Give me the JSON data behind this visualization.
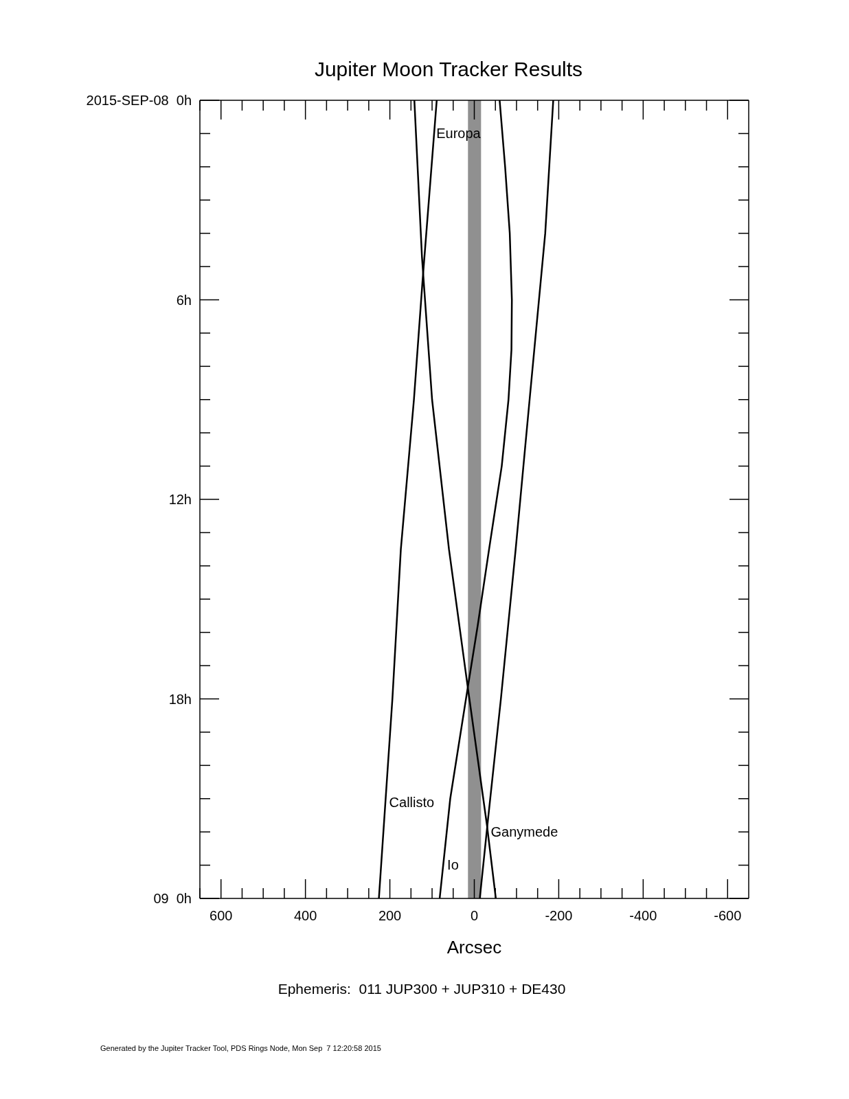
{
  "chart_data": {
    "type": "line",
    "title": "Jupiter Moon Tracker Results",
    "xlabel": "Arcsec",
    "xlim": [
      650,
      -650
    ],
    "xticks": [
      {
        "value": 650,
        "label": null
      },
      {
        "value": 600,
        "label": "600"
      },
      {
        "value": 550,
        "label": null
      },
      {
        "value": 500,
        "label": null
      },
      {
        "value": 450,
        "label": null
      },
      {
        "value": 400,
        "label": "400"
      },
      {
        "value": 350,
        "label": null
      },
      {
        "value": 300,
        "label": null
      },
      {
        "value": 250,
        "label": null
      },
      {
        "value": 200,
        "label": "200"
      },
      {
        "value": 150,
        "label": null
      },
      {
        "value": 100,
        "label": null
      },
      {
        "value": 50,
        "label": null
      },
      0,
      {
        "value": -50,
        "label": null
      },
      {
        "value": -100,
        "label": null
      },
      {
        "value": -150,
        "label": null
      },
      {
        "value": -200,
        "label": "-200"
      },
      {
        "value": -250,
        "label": null
      },
      {
        "value": -300,
        "label": null
      },
      {
        "value": -350,
        "label": null
      },
      {
        "value": -400,
        "label": "-400"
      },
      {
        "value": -450,
        "label": null
      },
      {
        "value": -500,
        "label": null
      },
      {
        "value": -550,
        "label": null
      },
      {
        "value": -600,
        "label": "-600"
      }
    ],
    "ylim": [
      24,
      0
    ],
    "yticks": [
      {
        "value": 0,
        "label": "2015-SEP-08  0h"
      },
      {
        "value": 1,
        "label": null
      },
      {
        "value": 2,
        "label": null
      },
      {
        "value": 3,
        "label": null
      },
      {
        "value": 4,
        "label": null
      },
      {
        "value": 5,
        "label": null
      },
      {
        "value": 6,
        "label": "6h"
      },
      {
        "value": 7,
        "label": null
      },
      {
        "value": 8,
        "label": null
      },
      {
        "value": 9,
        "label": null
      },
      {
        "value": 10,
        "label": null
      },
      {
        "value": 11,
        "label": null
      },
      {
        "value": 12,
        "label": "12h"
      },
      {
        "value": 13,
        "label": null
      },
      {
        "value": 14,
        "label": null
      },
      {
        "value": 15,
        "label": null
      },
      {
        "value": 16,
        "label": null
      },
      {
        "value": 17,
        "label": null
      },
      {
        "value": 18,
        "label": "18h"
      },
      {
        "value": 19,
        "label": null
      },
      {
        "value": 20,
        "label": null
      },
      {
        "value": 21,
        "label": null
      },
      {
        "value": 22,
        "label": null
      },
      {
        "value": 23,
        "label": null
      },
      {
        "value": 24,
        "label": "09  0h"
      }
    ],
    "line_style": "solid",
    "bands": [
      {
        "axis": "x",
        "from": 15,
        "to": -16,
        "color": "#909090"
      }
    ],
    "series": [
      {
        "name": "Io",
        "color": "#000000",
        "x": [
          -60,
          -73,
          -84,
          -89,
          -88,
          -81,
          -65,
          -35,
          -8,
          16,
          57,
          82
        ],
        "values": [
          0,
          2,
          4,
          6,
          7.5,
          9,
          11,
          13.5,
          15.8,
          17.7,
          21,
          24
        ]
      },
      {
        "name": "Europa",
        "color": "#000000",
        "x": [
          142,
          124,
          100,
          60,
          16,
          -30,
          -51
        ],
        "values": [
          0,
          4.7,
          9,
          13.5,
          17.6,
          21.8,
          24
        ]
      },
      {
        "name": "Ganymede",
        "color": "#000000",
        "x": [
          -187,
          -168,
          -131,
          -98,
          -63,
          -31,
          -13
        ],
        "values": [
          0,
          4,
          9,
          13.5,
          18,
          21.8,
          24
        ]
      },
      {
        "name": "Callisto",
        "color": "#000000",
        "x": [
          89,
          123,
          143,
          174,
          194,
          226
        ],
        "values": [
          0,
          5.5,
          9,
          13.5,
          18,
          24
        ]
      }
    ],
    "annotations": [
      "Ephemeris:  011 JUP300 + JUP310 + DE430",
      "Generated by the Jupiter Tracker Tool, PDS Rings Node, Mon Sep  7 12:20:58 2015"
    ]
  }
}
